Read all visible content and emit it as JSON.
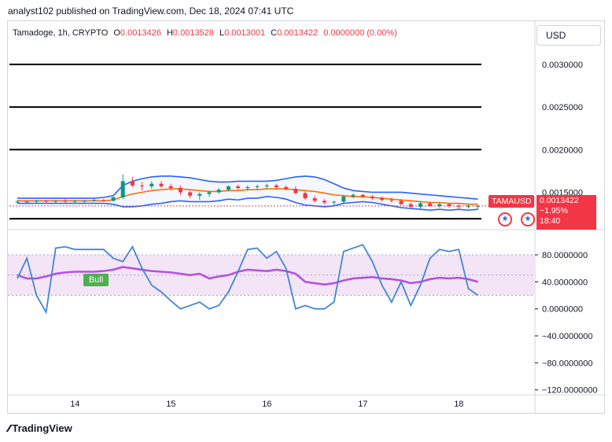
{
  "publisher_line": "analyst102 published on TradingView.com, Dec 18, 2024 07:41 UTC",
  "legend": {
    "symbol": "Tamadoge, 1h, CRYPTO",
    "open_label": "O",
    "open": "0.0013426",
    "high_label": "H",
    "high": "0.0013528",
    "low_label": "L",
    "low": "0.0013001",
    "close_label": "C",
    "close": "0.0013422",
    "change": "0.0000000 (0.00%)"
  },
  "currency_button": "USD",
  "price_tag": {
    "symbol": "TAMAUSD",
    "price": "0.0013422",
    "change_pct": "−1.95%",
    "countdown": "18:40"
  },
  "bull_label": "Bull",
  "footer_brand": "TradingView",
  "colors": {
    "up": "#089981",
    "down": "#f23645",
    "bb": "#2962ff",
    "basis": "#ff6d00",
    "k_line": "#4285d6",
    "d_line": "#b452e0",
    "band_fill": "#f3e5f5"
  },
  "chart_data": [
    {
      "type": "candlestick",
      "name": "price",
      "x_ticks": [
        "14",
        "15",
        "16",
        "17",
        "18"
      ],
      "x_tick_index": [
        6,
        16,
        26,
        36,
        46
      ],
      "y_ticks": [
        "0.0030000",
        "0.0025000",
        "0.0020000",
        "0.0015000"
      ],
      "y_tick_values": [
        0.003,
        0.0025,
        0.002,
        0.0015
      ],
      "ylim": [
        0.00108,
        0.00335
      ],
      "horizontal_lines": [
        0.003,
        0.0025,
        0.002,
        0.00119
      ],
      "candles": [
        [
          0.00139,
          0.00141,
          0.00137,
          0.00139
        ],
        [
          0.00139,
          0.0014,
          0.00138,
          0.00139
        ],
        [
          0.00139,
          0.00141,
          0.00137,
          0.0014
        ],
        [
          0.0014,
          0.00141,
          0.00138,
          0.00139
        ],
        [
          0.00139,
          0.00141,
          0.00137,
          0.0014
        ],
        [
          0.0014,
          0.00142,
          0.00138,
          0.00139
        ],
        [
          0.00139,
          0.00141,
          0.00137,
          0.0014
        ],
        [
          0.0014,
          0.00141,
          0.00138,
          0.0014
        ],
        [
          0.0014,
          0.00142,
          0.00139,
          0.00141
        ],
        [
          0.00141,
          0.00142,
          0.00139,
          0.0014
        ],
        [
          0.0014,
          0.00145,
          0.00139,
          0.00144
        ],
        [
          0.00144,
          0.00171,
          0.00142,
          0.00163
        ],
        [
          0.00163,
          0.00168,
          0.00156,
          0.00158
        ],
        [
          0.00158,
          0.00162,
          0.00152,
          0.00157
        ],
        [
          0.00157,
          0.00163,
          0.00154,
          0.0016
        ],
        [
          0.0016,
          0.00163,
          0.00155,
          0.00157
        ],
        [
          0.00157,
          0.0016,
          0.00152,
          0.00155
        ],
        [
          0.00155,
          0.00158,
          0.00147,
          0.0015
        ],
        [
          0.0015,
          0.00152,
          0.00143,
          0.00146
        ],
        [
          0.00146,
          0.0015,
          0.00141,
          0.00148
        ],
        [
          0.00148,
          0.00152,
          0.00145,
          0.0015
        ],
        [
          0.0015,
          0.00155,
          0.00148,
          0.00153
        ],
        [
          0.00153,
          0.00158,
          0.00151,
          0.00157
        ],
        [
          0.00157,
          0.00159,
          0.00153,
          0.00155
        ],
        [
          0.00155,
          0.00158,
          0.00152,
          0.00156
        ],
        [
          0.00156,
          0.00159,
          0.00153,
          0.00157
        ],
        [
          0.00157,
          0.0016,
          0.00154,
          0.00158
        ],
        [
          0.00158,
          0.0016,
          0.00154,
          0.00156
        ],
        [
          0.00156,
          0.00158,
          0.00152,
          0.00154
        ],
        [
          0.00154,
          0.00157,
          0.00148,
          0.00149
        ],
        [
          0.00149,
          0.00151,
          0.00141,
          0.00143
        ],
        [
          0.00143,
          0.00146,
          0.00138,
          0.0014
        ],
        [
          0.0014,
          0.00142,
          0.00136,
          0.00138
        ],
        [
          0.00138,
          0.0014,
          0.00135,
          0.00139
        ],
        [
          0.00139,
          0.00147,
          0.00137,
          0.00145
        ],
        [
          0.00145,
          0.00149,
          0.00143,
          0.00147
        ],
        [
          0.00147,
          0.00148,
          0.00143,
          0.00145
        ],
        [
          0.00145,
          0.00147,
          0.00141,
          0.00143
        ],
        [
          0.00143,
          0.00145,
          0.00139,
          0.00141
        ],
        [
          0.00141,
          0.00143,
          0.00138,
          0.0014
        ],
        [
          0.0014,
          0.00142,
          0.00135,
          0.00136
        ],
        [
          0.00136,
          0.00138,
          0.00131,
          0.00133
        ],
        [
          0.00133,
          0.00139,
          0.00131,
          0.00137
        ],
        [
          0.00137,
          0.00139,
          0.00133,
          0.00134
        ],
        [
          0.00134,
          0.00138,
          0.00132,
          0.00136
        ],
        [
          0.00136,
          0.00137,
          0.00132,
          0.00134
        ],
        [
          0.00134,
          0.00136,
          0.00131,
          0.00133
        ],
        [
          0.00133,
          0.00136,
          0.00131,
          0.00134
        ],
        [
          0.00134,
          0.00135,
          0.0013,
          0.00134
        ]
      ],
      "bb_upper": [
        0.00143,
        0.00143,
        0.00143,
        0.00143,
        0.00143,
        0.00143,
        0.00143,
        0.00143,
        0.00143,
        0.00144,
        0.00146,
        0.00158,
        0.00163,
        0.00166,
        0.00168,
        0.00169,
        0.00169,
        0.00168,
        0.00167,
        0.00165,
        0.00163,
        0.00162,
        0.00162,
        0.00163,
        0.00163,
        0.00163,
        0.00163,
        0.00164,
        0.00166,
        0.00168,
        0.00169,
        0.00168,
        0.00165,
        0.0016,
        0.00155,
        0.00152,
        0.00151,
        0.0015,
        0.0015,
        0.0015,
        0.0015,
        0.00149,
        0.00148,
        0.00147,
        0.00146,
        0.00145,
        0.00144,
        0.00143,
        0.00142
      ],
      "bb_basis": [
        0.0014,
        0.0014,
        0.0014,
        0.0014,
        0.0014,
        0.0014,
        0.0014,
        0.0014,
        0.0014,
        0.0014,
        0.00141,
        0.00145,
        0.00148,
        0.0015,
        0.00152,
        0.00153,
        0.00154,
        0.00154,
        0.00153,
        0.00152,
        0.00151,
        0.00151,
        0.00152,
        0.00152,
        0.00153,
        0.00153,
        0.00154,
        0.00154,
        0.00154,
        0.00153,
        0.00152,
        0.00151,
        0.00149,
        0.00147,
        0.00146,
        0.00145,
        0.00145,
        0.00144,
        0.00143,
        0.00142,
        0.00141,
        0.0014,
        0.00139,
        0.00138,
        0.00138,
        0.00137,
        0.00137,
        0.00136,
        0.00136
      ],
      "bb_lower": [
        0.00137,
        0.00137,
        0.00137,
        0.00137,
        0.00137,
        0.00137,
        0.00137,
        0.00137,
        0.00137,
        0.00137,
        0.00136,
        0.00133,
        0.00133,
        0.00134,
        0.00136,
        0.00137,
        0.00139,
        0.0014,
        0.00139,
        0.00139,
        0.00139,
        0.0014,
        0.00142,
        0.00141,
        0.00143,
        0.00143,
        0.00145,
        0.00144,
        0.00142,
        0.00138,
        0.00135,
        0.00134,
        0.00133,
        0.00134,
        0.00137,
        0.00138,
        0.00139,
        0.00138,
        0.00136,
        0.00134,
        0.00132,
        0.00131,
        0.0013,
        0.00129,
        0.0013,
        0.00129,
        0.0013,
        0.00129,
        0.0013
      ]
    },
    {
      "type": "line",
      "name": "stochastic RSI",
      "y_ticks": [
        "80.0000000",
        "40.0000000",
        "0.0000000",
        "−40.0000000",
        "−80.0000000",
        "−120.0000000"
      ],
      "y_tick_values": [
        80,
        40,
        0,
        -40,
        -80,
        -120
      ],
      "ylim": [
        -125,
        115
      ],
      "band": [
        20,
        80
      ],
      "series": [
        {
          "key": "k",
          "values": [
            45,
            75,
            20,
            -5,
            90,
            92,
            88,
            88,
            88,
            88,
            75,
            70,
            92,
            60,
            35,
            25,
            12,
            0,
            5,
            10,
            0,
            5,
            25,
            55,
            88,
            90,
            75,
            85,
            60,
            0,
            5,
            0,
            0,
            10,
            85,
            90,
            95,
            70,
            35,
            10,
            40,
            5,
            35,
            75,
            88,
            85,
            88,
            30,
            20
          ]
        },
        {
          "key": "d",
          "values": [
            50,
            45,
            45,
            48,
            52,
            54,
            55,
            55,
            55,
            56,
            58,
            62,
            60,
            58,
            56,
            55,
            54,
            52,
            50,
            52,
            45,
            48,
            50,
            55,
            58,
            57,
            56,
            58,
            56,
            52,
            40,
            38,
            36,
            38,
            42,
            45,
            46,
            47,
            45,
            44,
            42,
            38,
            40,
            44,
            46,
            45,
            46,
            44,
            40
          ]
        }
      ]
    }
  ]
}
